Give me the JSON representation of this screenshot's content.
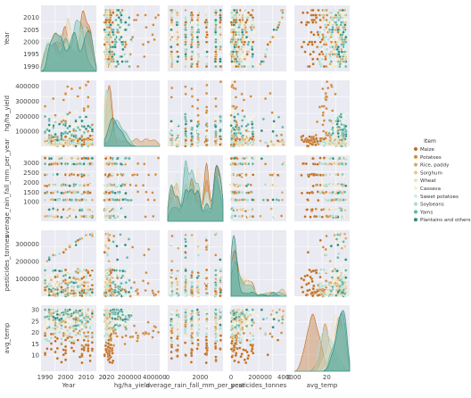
{
  "chart_data": {
    "type": "scatter",
    "subtype": "pairplot",
    "title": "",
    "variables": [
      "Year",
      "hg/ha_yield",
      "average_rain_fall_mm_per_year",
      "pesticides_tonnes",
      "avg_temp"
    ],
    "y_tick_labels": [
      [
        "1990",
        "1995",
        "2000",
        "2005",
        "2010"
      ],
      [
        "100000",
        "200000",
        "300000",
        "400000"
      ],
      [
        "1000",
        "1500",
        "2000",
        "2500",
        "3000"
      ],
      [
        "100000",
        "200000",
        "300000"
      ],
      [
        "10",
        "15",
        "20",
        "25",
        "30"
      ]
    ],
    "x_tick_labels": [
      [
        "1990",
        "2000",
        "2010",
        "2020"
      ],
      [
        "0",
        "200000",
        "400000"
      ],
      [
        "0",
        "2000"
      ],
      [
        "0",
        "200000",
        "400000"
      ],
      [
        "0",
        "20"
      ]
    ],
    "ranges": {
      "Year": [
        1988,
        2015
      ],
      "hg/ha_yield": [
        0,
        440000
      ],
      "average_rain_fall_mm_per_year": [
        0,
        3400
      ],
      "pesticides_tonnes": [
        0,
        380000
      ],
      "avg_temp": [
        3,
        32
      ]
    },
    "legend": {
      "title": "Item",
      "position": "right",
      "items": [
        {
          "label": "Maize",
          "color": "#bf6b1c"
        },
        {
          "label": "Potatoes",
          "color": "#cf8a3e"
        },
        {
          "label": "Rice, paddy",
          "color": "#d8a965"
        },
        {
          "label": "Sorghum",
          "color": "#e5c894"
        },
        {
          "label": "Wheat",
          "color": "#f1e3c3"
        },
        {
          "label": "Cassava",
          "color": "#f4f0dc"
        },
        {
          "label": "Sweet potatoes",
          "color": "#d5ece8"
        },
        {
          "label": "Soybeans",
          "color": "#a8dcd1"
        },
        {
          "label": "Yams",
          "color": "#62b4a5"
        },
        {
          "label": "Plantains and others",
          "color": "#2a8a7d"
        }
      ]
    },
    "facet_background": "#eaeaf2",
    "grid": true,
    "diagonal": "kde"
  }
}
